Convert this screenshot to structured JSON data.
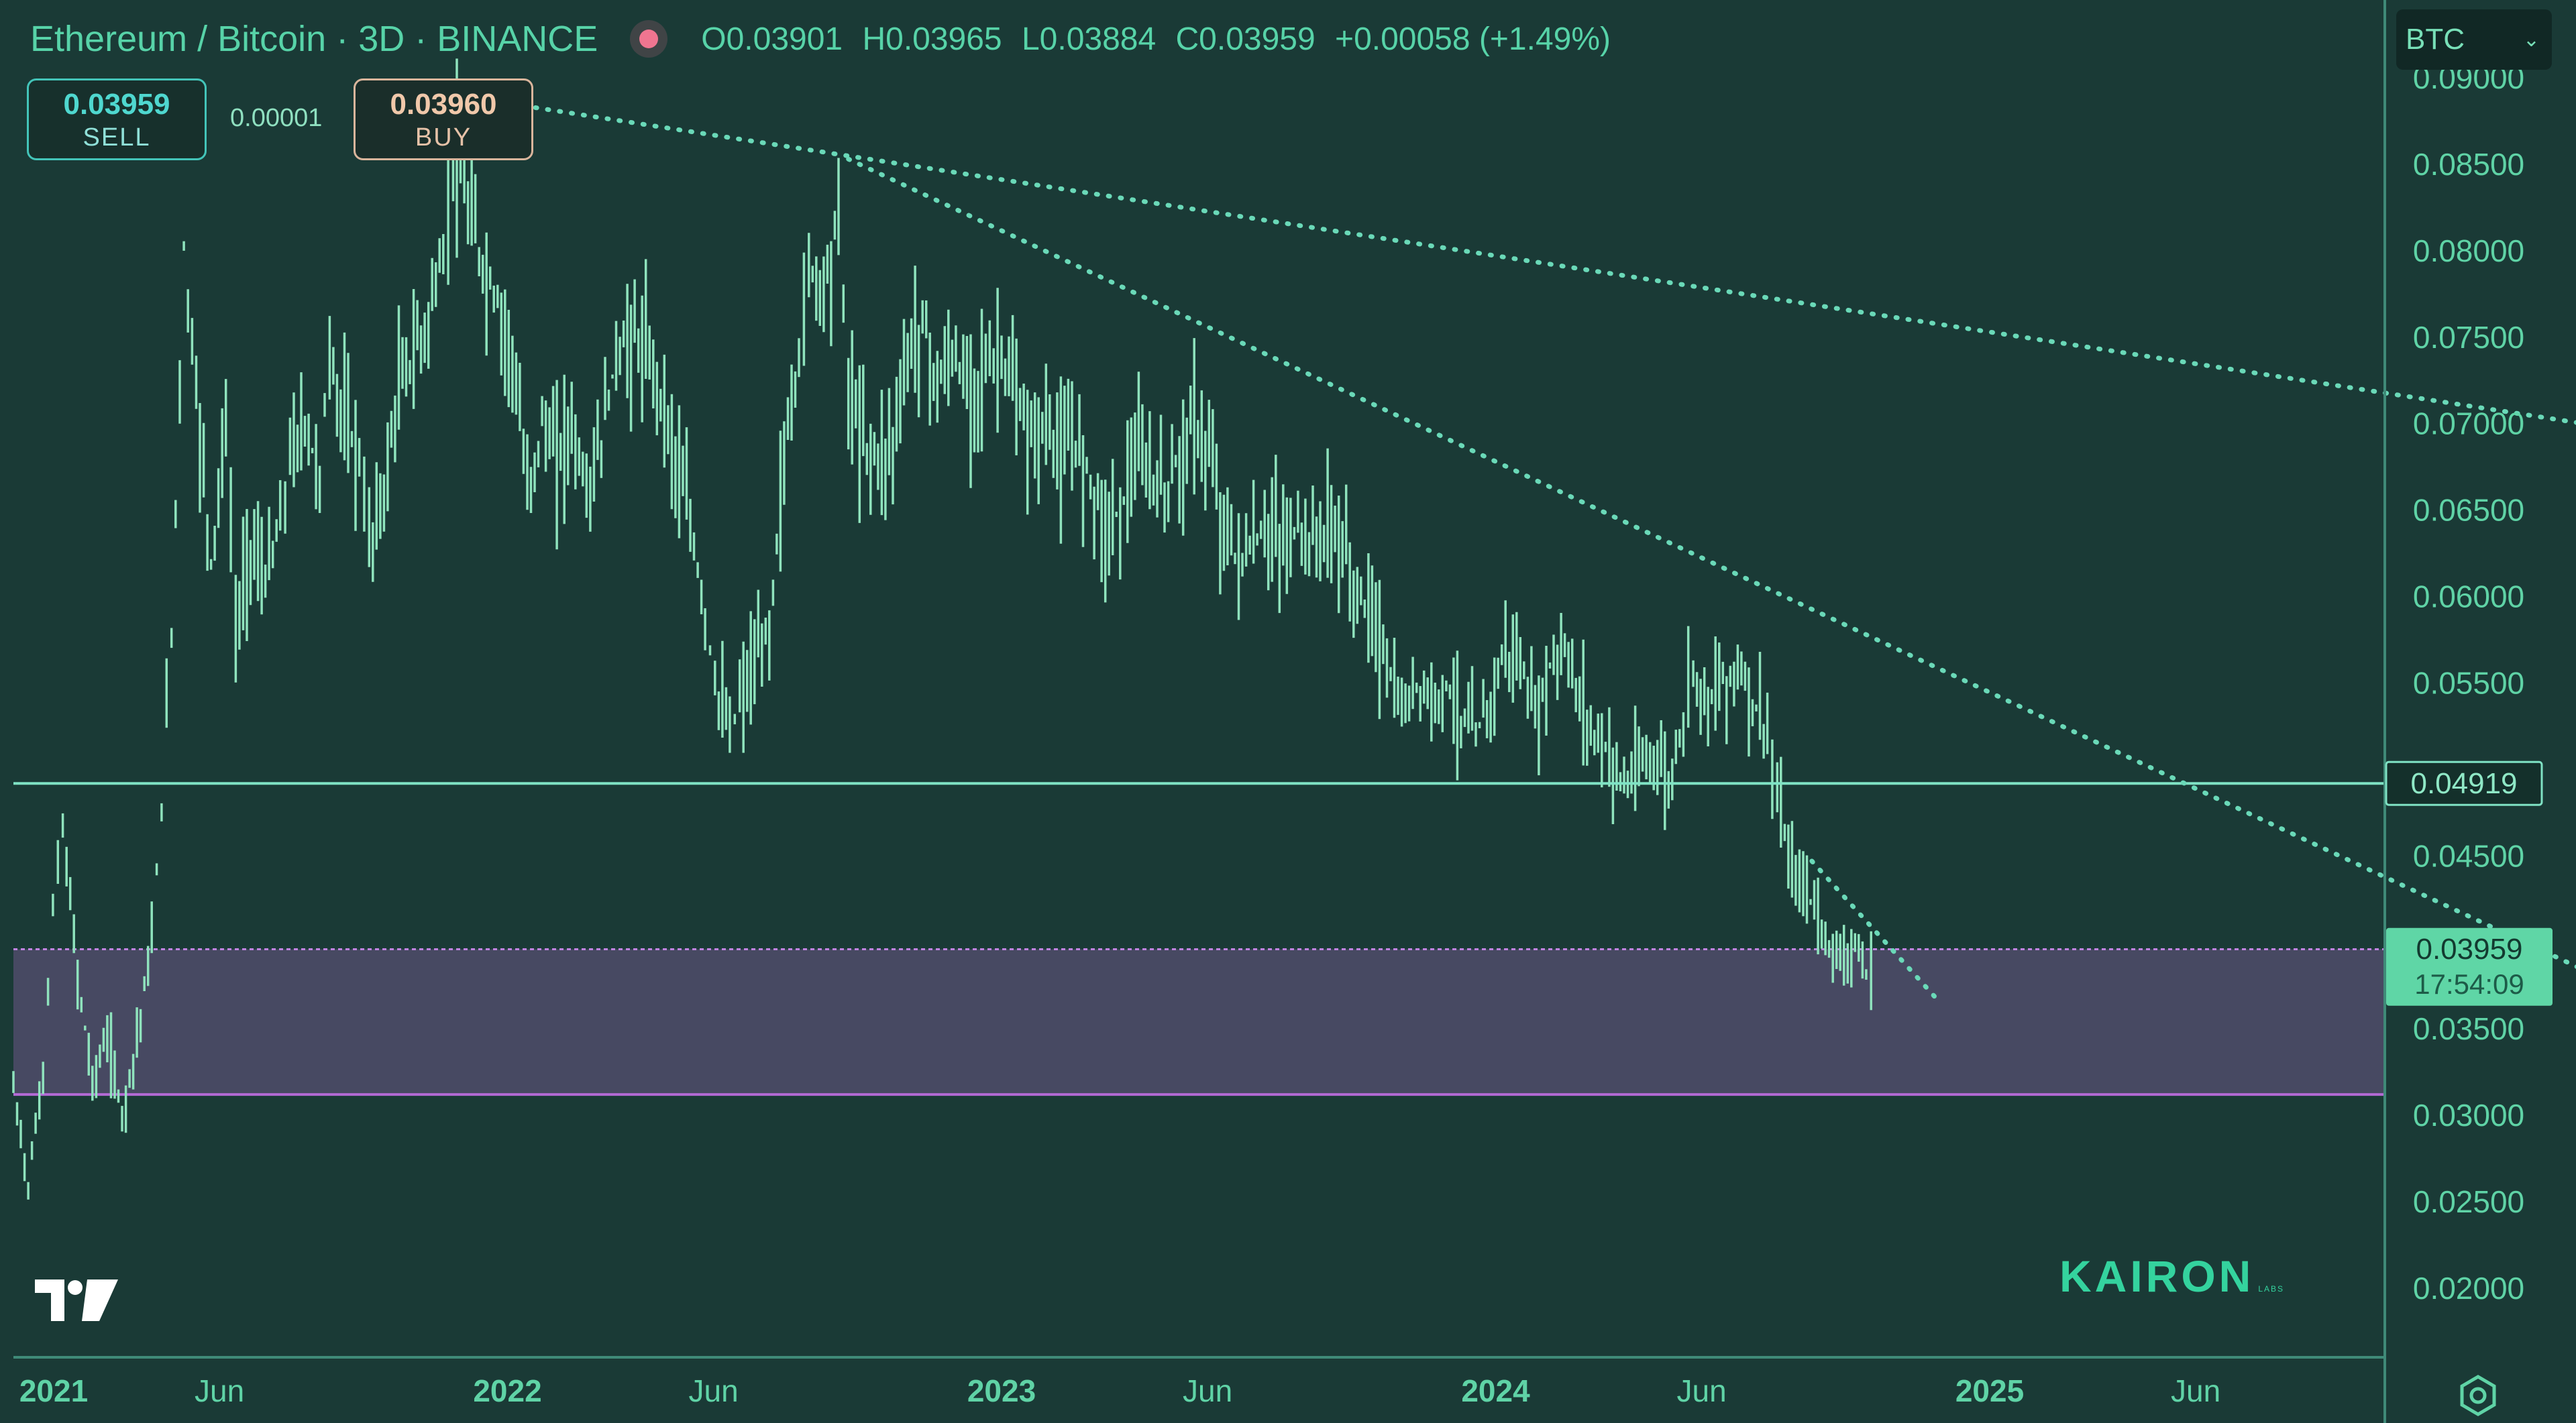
{
  "header": {
    "title": "Ethereum / Bitcoin · 3D · BINANCE",
    "open": "O0.03901",
    "high": "H0.03965",
    "low": "L0.03884",
    "close": "C0.03959",
    "change": "+0.00058 (+1.49%)"
  },
  "trade": {
    "sell_price": "0.03959",
    "sell_label": "SELL",
    "spread": "0.00001",
    "buy_price": "0.03960",
    "buy_label": "BUY"
  },
  "currency": "BTC",
  "watermark": "KAIRON",
  "watermark_sub": "LABS",
  "colors": {
    "background": "#1a3a36",
    "candles": "#8fe3bd",
    "trendline": "#6ad9b8",
    "support_line": "#7fe2c4",
    "zone_fill": "#4a4a65",
    "zone_edge": "#b36ad4",
    "axis_text": "#5fd3a6"
  },
  "chart_data": {
    "type": "line",
    "title": "Ethereum / Bitcoin · 3D · BINANCE",
    "ylim": [
      0.016,
      0.0945
    ],
    "y_ticks": [
      "0.09000",
      "0.08500",
      "0.08000",
      "0.07500",
      "0.07000",
      "0.06500",
      "0.06000",
      "0.05500",
      "0.04500",
      "0.03500",
      "0.03000",
      "0.02500",
      "0.02000"
    ],
    "x_ticks": [
      {
        "label": "2021",
        "t": 2021.0,
        "major": true
      },
      {
        "label": "Jun",
        "t": 2021.417,
        "major": false
      },
      {
        "label": "2022",
        "t": 2022.0,
        "major": true
      },
      {
        "label": "Jun",
        "t": 2022.417,
        "major": false
      },
      {
        "label": "2023",
        "t": 2023.0,
        "major": true
      },
      {
        "label": "Jun",
        "t": 2023.417,
        "major": false
      },
      {
        "label": "2024",
        "t": 2024.0,
        "major": true
      },
      {
        "label": "Jun",
        "t": 2024.417,
        "major": false
      },
      {
        "label": "2025",
        "t": 2025.0,
        "major": true
      },
      {
        "label": "Jun",
        "t": 2025.417,
        "major": false
      }
    ],
    "series": [
      {
        "points": [
          [
            2021.0,
            0.0315
          ],
          [
            2021.03,
            0.026
          ],
          [
            2021.06,
            0.0325
          ],
          [
            2021.08,
            0.042
          ],
          [
            2021.1,
            0.0465
          ],
          [
            2021.13,
            0.038
          ],
          [
            2021.16,
            0.032
          ],
          [
            2021.19,
            0.0345
          ],
          [
            2021.22,
            0.03
          ],
          [
            2021.25,
            0.0345
          ],
          [
            2021.28,
            0.04
          ],
          [
            2021.3,
            0.048
          ],
          [
            2021.32,
            0.058
          ],
          [
            2021.345,
            0.08
          ],
          [
            2021.37,
            0.072
          ],
          [
            2021.4,
            0.062
          ],
          [
            2021.43,
            0.07
          ],
          [
            2021.45,
            0.058
          ],
          [
            2021.48,
            0.063
          ],
          [
            2021.51,
            0.061
          ],
          [
            2021.54,
            0.064
          ],
          [
            2021.56,
            0.068
          ],
          [
            2021.59,
            0.07
          ],
          [
            2021.62,
            0.067
          ],
          [
            2021.64,
            0.074
          ],
          [
            2021.67,
            0.07
          ],
          [
            2021.7,
            0.068
          ],
          [
            2021.72,
            0.063
          ],
          [
            2021.75,
            0.066
          ],
          [
            2021.78,
            0.072
          ],
          [
            2021.81,
            0.074
          ],
          [
            2021.84,
            0.076
          ],
          [
            2021.87,
            0.08
          ],
          [
            2021.89,
            0.086
          ],
          [
            2021.92,
            0.082
          ],
          [
            2021.95,
            0.079
          ],
          [
            2021.98,
            0.077
          ],
          [
            2022.01,
            0.074
          ],
          [
            2022.04,
            0.066
          ],
          [
            2022.07,
            0.07
          ],
          [
            2022.1,
            0.068
          ],
          [
            2022.13,
            0.07
          ],
          [
            2022.16,
            0.066
          ],
          [
            2022.19,
            0.069
          ],
          [
            2022.22,
            0.074
          ],
          [
            2022.25,
            0.075
          ],
          [
            2022.28,
            0.074
          ],
          [
            2022.31,
            0.072
          ],
          [
            2022.34,
            0.068
          ],
          [
            2022.37,
            0.064
          ],
          [
            2022.4,
            0.059
          ],
          [
            2022.42,
            0.055
          ],
          [
            2022.45,
            0.052
          ],
          [
            2022.47,
            0.054
          ],
          [
            2022.5,
            0.056
          ],
          [
            2022.53,
            0.058
          ],
          [
            2022.56,
            0.068
          ],
          [
            2022.59,
            0.074
          ],
          [
            2022.61,
            0.079
          ],
          [
            2022.64,
            0.078
          ],
          [
            2022.67,
            0.082
          ],
          [
            2022.69,
            0.072
          ],
          [
            2022.72,
            0.069
          ],
          [
            2022.75,
            0.068
          ],
          [
            2022.78,
            0.069
          ],
          [
            2022.81,
            0.074
          ],
          [
            2022.84,
            0.076
          ],
          [
            2022.87,
            0.072
          ],
          [
            2022.9,
            0.074
          ],
          [
            2022.93,
            0.072
          ],
          [
            2022.96,
            0.073
          ],
          [
            2023.0,
            0.074
          ],
          [
            2023.03,
            0.071
          ],
          [
            2023.06,
            0.069
          ],
          [
            2023.09,
            0.07
          ],
          [
            2023.12,
            0.068
          ],
          [
            2023.15,
            0.069
          ],
          [
            2023.18,
            0.067
          ],
          [
            2023.21,
            0.064
          ],
          [
            2023.24,
            0.065
          ],
          [
            2023.27,
            0.068
          ],
          [
            2023.3,
            0.067
          ],
          [
            2023.33,
            0.066
          ],
          [
            2023.36,
            0.068
          ],
          [
            2023.39,
            0.07
          ],
          [
            2023.42,
            0.068
          ],
          [
            2023.45,
            0.064
          ],
          [
            2023.48,
            0.062
          ],
          [
            2023.51,
            0.063
          ],
          [
            2023.54,
            0.064
          ],
          [
            2023.57,
            0.063
          ],
          [
            2023.6,
            0.064
          ],
          [
            2023.63,
            0.063
          ],
          [
            2023.66,
            0.064
          ],
          [
            2023.69,
            0.063
          ],
          [
            2023.72,
            0.06
          ],
          [
            2023.75,
            0.059
          ],
          [
            2023.78,
            0.056
          ],
          [
            2023.81,
            0.053
          ],
          [
            2023.84,
            0.055
          ],
          [
            2023.87,
            0.054
          ],
          [
            2023.9,
            0.055
          ],
          [
            2023.93,
            0.053
          ],
          [
            2023.96,
            0.052
          ],
          [
            2023.99,
            0.054
          ],
          [
            2024.02,
            0.057
          ],
          [
            2024.05,
            0.056
          ],
          [
            2024.08,
            0.053
          ],
          [
            2024.11,
            0.056
          ],
          [
            2024.14,
            0.057
          ],
          [
            2024.17,
            0.054
          ],
          [
            2024.2,
            0.052
          ],
          [
            2024.23,
            0.051
          ],
          [
            2024.26,
            0.049
          ],
          [
            2024.29,
            0.05
          ],
          [
            2024.32,
            0.051
          ],
          [
            2024.35,
            0.049
          ],
          [
            2024.38,
            0.053
          ],
          [
            2024.4,
            0.056
          ],
          [
            2024.43,
            0.054
          ],
          [
            2024.46,
            0.055
          ],
          [
            2024.49,
            0.056
          ],
          [
            2024.52,
            0.054
          ],
          [
            2024.55,
            0.052
          ],
          [
            2024.57,
            0.048
          ],
          [
            2024.6,
            0.044
          ],
          [
            2024.63,
            0.043
          ],
          [
            2024.66,
            0.041
          ],
          [
            2024.69,
            0.039
          ],
          [
            2024.72,
            0.04
          ],
          [
            2024.75,
            0.038
          ],
          [
            2024.77,
            0.0396
          ]
        ]
      }
    ],
    "horizontal_lines": [
      {
        "value": 0.04919,
        "label": "0.04919"
      }
    ],
    "zone": {
      "from": 0.0312,
      "to": 0.0396
    },
    "trendlines": [
      {
        "from": [
          2021.96,
          0.0887
        ],
        "to": [
          2026.27,
          0.0697
        ]
      },
      {
        "from": [
          2022.69,
          0.0853
        ],
        "to": [
          2026.27,
          0.0375
        ]
      },
      {
        "from": [
          2024.64,
          0.0447
        ],
        "to": [
          2024.9,
          0.0365
        ]
      }
    ],
    "last_price": {
      "value": 0.03959,
      "label": "0.03959",
      "countdown": "17:54:09"
    }
  }
}
